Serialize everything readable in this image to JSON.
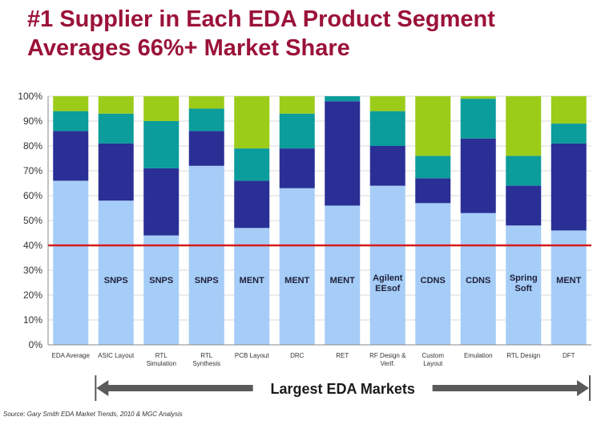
{
  "title": {
    "line1": "#1 Supplier in Each EDA Product Segment",
    "line2": "Averages 66%+ Market Share"
  },
  "colors": {
    "title": "#9b1238",
    "segment_1": "#a6cdf7",
    "segment_2": "#2a2f96",
    "segment_3": "#0b9c9c",
    "segment_4": "#9ccc1a",
    "threshold_line": "#d61b1b",
    "arrow": "#5a5a5a"
  },
  "chart_data": {
    "type": "bar",
    "stacked": true,
    "categories": [
      "EDA Average",
      "ASIC Layout",
      "RTL Simulation",
      "RTL Synthesis",
      "PCB Layout",
      "DRC",
      "RET",
      "RF Design & Verif.",
      "Custom Layout",
      "Emulation",
      "RTL Design",
      "DFT"
    ],
    "series": [
      {
        "values": [
          66,
          58,
          44,
          72,
          47,
          63,
          56,
          64,
          57,
          53,
          48,
          46
        ]
      },
      {
        "values": [
          20,
          23,
          27,
          14,
          19,
          16,
          42,
          16,
          10,
          30,
          16,
          35
        ]
      },
      {
        "values": [
          8,
          12,
          19,
          9,
          13,
          14,
          2,
          14,
          9,
          16,
          12,
          8
        ]
      },
      {
        "values": [
          6,
          7,
          10,
          5,
          21,
          7,
          0,
          6,
          24,
          1,
          24,
          11
        ]
      }
    ],
    "bar_labels": [
      "",
      "SNPS",
      "SNPS",
      "SNPS",
      "MENT",
      "MENT",
      "MENT",
      "Agilent EEsof",
      "CDNS",
      "CDNS",
      "Spring Soft",
      "MENT"
    ],
    "threshold": 40,
    "y_ticks": [
      "0%",
      "10%",
      "20%",
      "30%",
      "40%",
      "50%",
      "60%",
      "70%",
      "80%",
      "90%",
      "100%"
    ],
    "ylim": [
      0,
      100
    ],
    "grid": true
  },
  "arrow_label": "Largest EDA Markets",
  "source": "Source:  Gary Smith EDA Market Trends, 2010 & MGC Analysis"
}
